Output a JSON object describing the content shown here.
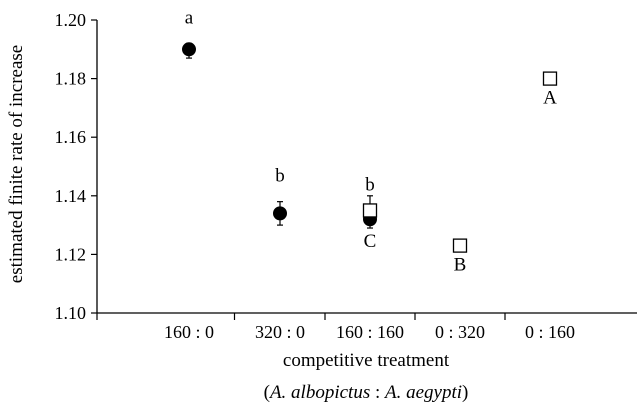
{
  "chart_data": {
    "type": "scatter",
    "title": "",
    "ylabel": "estimated finite rate of increase",
    "xlabel": "competitive treatment",
    "xlabel_sub": {
      "open": "(",
      "species_a": "A. albopictus",
      "sep": " : ",
      "species_b": "A. aegypti",
      "close": ")"
    },
    "categories": [
      "160 : 0",
      "320 : 0",
      "160 : 160",
      "0 : 320",
      "0 : 160"
    ],
    "ylim": [
      1.1,
      1.2
    ],
    "yticks": [
      "1.10",
      "1.12",
      "1.14",
      "1.16",
      "1.18",
      "1.20"
    ],
    "grid": false,
    "series": [
      {
        "marker": "filled-circle",
        "points": [
          {
            "category": "160 : 0",
            "y": 1.19,
            "err_low": 1.187,
            "err_high": 1.192,
            "label": "a"
          },
          {
            "category": "320 : 0",
            "y": 1.134,
            "err_low": 1.13,
            "err_high": 1.138,
            "label": "b"
          },
          {
            "category": "160 : 160",
            "y": 1.132,
            "err_low": 1.129,
            "err_high": 1.135,
            "label": "b"
          }
        ]
      },
      {
        "marker": "open-square",
        "points": [
          {
            "category": "160 : 160",
            "y": 1.135,
            "err_low": 1.131,
            "err_high": 1.14,
            "label": "C"
          },
          {
            "category": "0 : 320",
            "y": 1.123,
            "err_low": 1.123,
            "err_high": 1.123,
            "label": "B"
          },
          {
            "category": "0 : 160",
            "y": 1.18,
            "err_low": 1.18,
            "err_high": 1.18,
            "label": "A"
          }
        ]
      }
    ]
  }
}
